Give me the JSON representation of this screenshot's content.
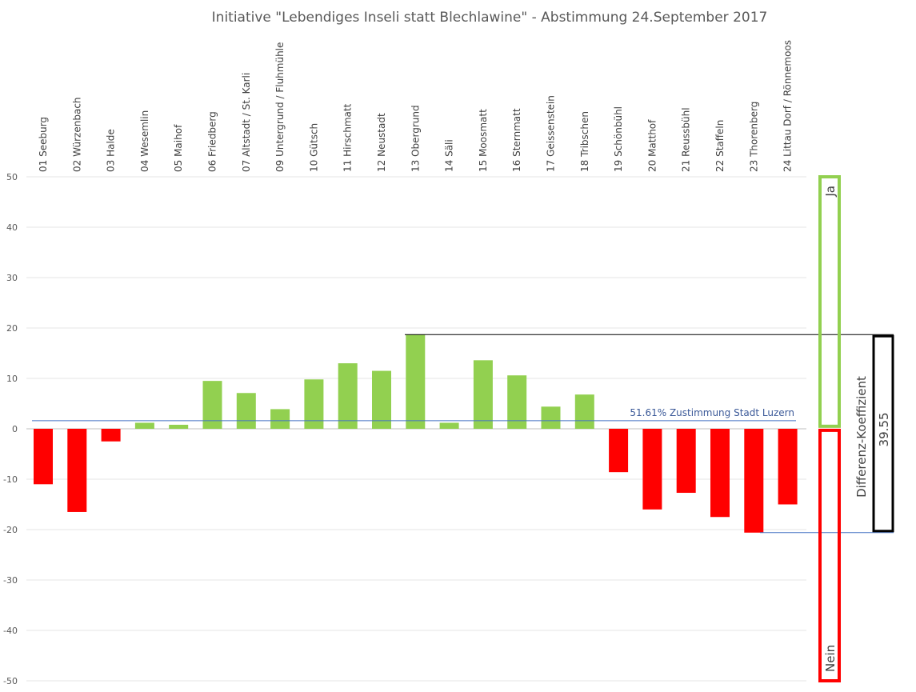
{
  "chart_data": {
    "type": "bar",
    "title": "Initiative \"Lebendiges Inseli statt Blechlawine\" - Abstimmung 24.September 2017",
    "xlabel": "",
    "ylabel": "",
    "ylim": [
      -50,
      50
    ],
    "yticks": [
      50,
      40,
      30,
      20,
      10,
      0,
      -10,
      -20,
      -30,
      -40,
      -50
    ],
    "grid": true,
    "categories": [
      "01 Seeburg",
      "02 Würzenbach",
      "03 Halde",
      "04 Wesemlin",
      "05 Maihof",
      "06 Friedberg",
      "07 Altstadt / St. Karli",
      "09 Untergrund / Fluhmühle",
      "10 Gütsch",
      "11 Hirschmatt",
      "12 Neustadt",
      "13 Obergrund",
      "14 Säli",
      "15 Moosmatt",
      "16 Sternmatt",
      "17 Geissenstein",
      "18 Tribschen",
      "19 Schönbühl",
      "20 Matthof",
      "21 Reussbühl",
      "22 Staffeln",
      "23 Thorenberg",
      "24 Littau Dorf / Rönnemoos"
    ],
    "values": [
      -11,
      -16.5,
      -2.5,
      1.2,
      0.8,
      9.5,
      7.1,
      3.9,
      9.8,
      13,
      11.5,
      18.7,
      1.2,
      13.6,
      10.6,
      4.4,
      6.8,
      -8.6,
      -16,
      -12.7,
      -17.5,
      -20.6,
      -15
    ],
    "colors": {
      "positive": "#92d050",
      "negative": "#ff0000"
    },
    "reference_line": {
      "value": 1.61,
      "label": "51.61% Zustimmung Stadt Luzern",
      "color": "#4472c4"
    },
    "max_line": 18.7,
    "min_line": -20.6,
    "legend": {
      "ja": "Ja",
      "nein": "Nein"
    },
    "coefficient": {
      "label": "Differenz-Koeffizient",
      "value": "39.55"
    }
  }
}
